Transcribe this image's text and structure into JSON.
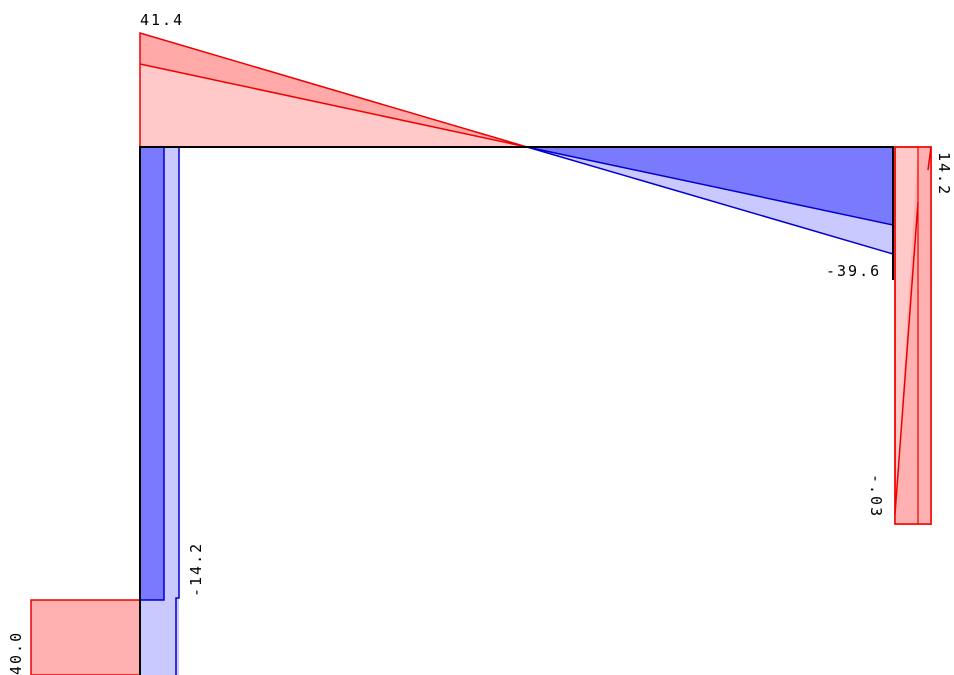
{
  "diagram": {
    "kind": "frame internal force diagram",
    "colors": {
      "positive_fill": "#ffc9c9",
      "positive_stroke": "#ee0000",
      "positive_dark_fill": "#ffa9a9",
      "negative_fill": "#7a7aff",
      "negative_light_fill": "#c9c9ff",
      "negative_stroke": "#0000cc",
      "member": "#000000"
    },
    "labels": {
      "beam_left_peak": "41.4",
      "beam_right_min": "-39.6",
      "right_column_top": "14.2",
      "right_column_bottom": "-.03",
      "left_column": "-14.2",
      "support_left": "40.0"
    }
  }
}
